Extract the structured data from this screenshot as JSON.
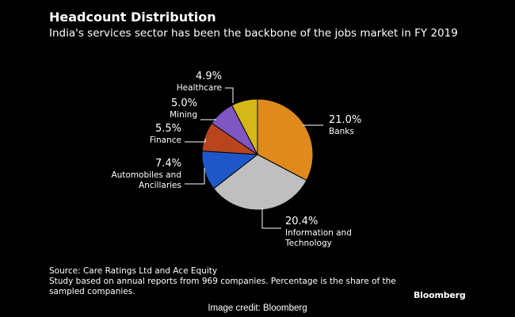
{
  "chart_data": {
    "type": "pie",
    "title": "Headcount Distribution",
    "subtitle": "India's services sector has been the backbone of the jobs market in FY 2019",
    "slices": [
      {
        "label": "Banks",
        "value": 21.0,
        "display": "21.0%",
        "color": "#E08A1E"
      },
      {
        "label": "Information and Technology",
        "value": 20.4,
        "display": "20.4%",
        "color": "#BFBFBF"
      },
      {
        "label": "Automobiles and Ancillaries",
        "value": 7.4,
        "display": "7.4%",
        "color": "#1F57C8"
      },
      {
        "label": "Finance",
        "value": 5.5,
        "display": "5.5%",
        "color": "#B8451E"
      },
      {
        "label": "Mining",
        "value": 5.0,
        "display": "5.0%",
        "color": "#7E57C2"
      },
      {
        "label": "Healthcare",
        "value": 4.9,
        "display": "4.9%",
        "color": "#D4B81A"
      }
    ],
    "legend": "none"
  },
  "footer": {
    "source": "Source: Care Ratings Ltd and Ace Equity",
    "note": "Study based on annual reports from 969 companies. Percentage is the share of the sampled companies.",
    "logo": "Bloomberg",
    "credit": "Image credit: Bloomberg"
  }
}
